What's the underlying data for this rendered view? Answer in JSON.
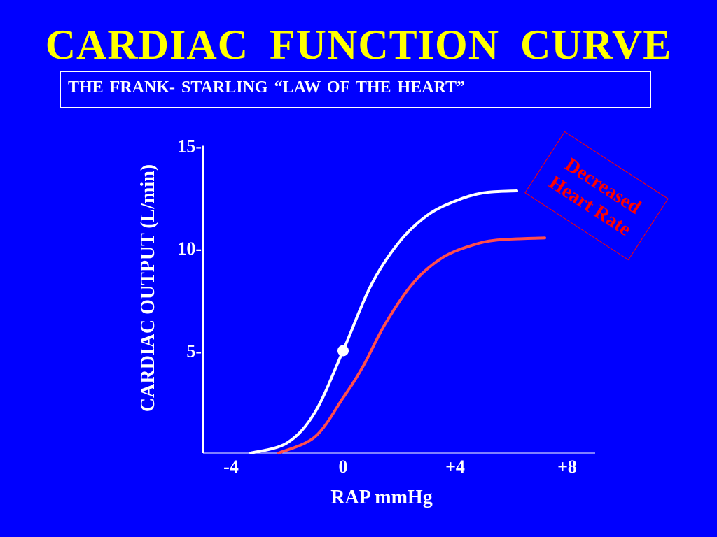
{
  "slide": {
    "title": "CARDIAC  FUNCTION  CURVE",
    "subtitle": "THE  FRANK- STARLING “LAW  OF  THE  HEART”"
  },
  "colors": {
    "background": "#0000FF",
    "title": "#FFFF00",
    "normal_curve": "#FFFFFF",
    "decreased_curve": "#FF4D4D",
    "annotation": "#FF0000"
  },
  "chart_data": {
    "type": "line",
    "title": "",
    "xlabel": "RAP mmHg",
    "ylabel": "CARDIAC  OUTPUT  (L/min)",
    "xlim": [
      -5,
      9
    ],
    "ylim": [
      0,
      15
    ],
    "x_ticks": [
      {
        "value": -4,
        "label": "-4"
      },
      {
        "value": 0,
        "label": "0"
      },
      {
        "value": 4,
        "label": "+4"
      },
      {
        "value": 8,
        "label": "+8"
      }
    ],
    "y_ticks": [
      {
        "value": 5,
        "label": "5-"
      },
      {
        "value": 10,
        "label": "10-"
      },
      {
        "value": 15,
        "label": "15-"
      }
    ],
    "grid": false,
    "series": [
      {
        "color": "#FFFFFF",
        "points": [
          [
            -3.3,
            0.0
          ],
          [
            -2.0,
            0.5
          ],
          [
            -1.0,
            2.0
          ],
          [
            0.0,
            5.0
          ],
          [
            1.0,
            8.2
          ],
          [
            2.0,
            10.3
          ],
          [
            3.0,
            11.6
          ],
          [
            4.0,
            12.3
          ],
          [
            5.0,
            12.7
          ],
          [
            6.2,
            12.8
          ]
        ]
      },
      {
        "color": "#FF4D4D",
        "points": [
          [
            -2.3,
            0.0
          ],
          [
            -1.0,
            0.8
          ],
          [
            0.0,
            2.7
          ],
          [
            0.7,
            4.2
          ],
          [
            1.5,
            6.3
          ],
          [
            2.5,
            8.3
          ],
          [
            3.5,
            9.5
          ],
          [
            4.5,
            10.1
          ],
          [
            5.5,
            10.4
          ],
          [
            7.2,
            10.5
          ]
        ]
      }
    ],
    "markers": [
      {
        "x": 0,
        "y": 5.0,
        "color": "#FFFFFF"
      }
    ],
    "annotations": [
      {
        "lines": [
          "Decreased",
          "Heart Rate"
        ],
        "color": "#FF0000",
        "boxed": true
      }
    ]
  }
}
